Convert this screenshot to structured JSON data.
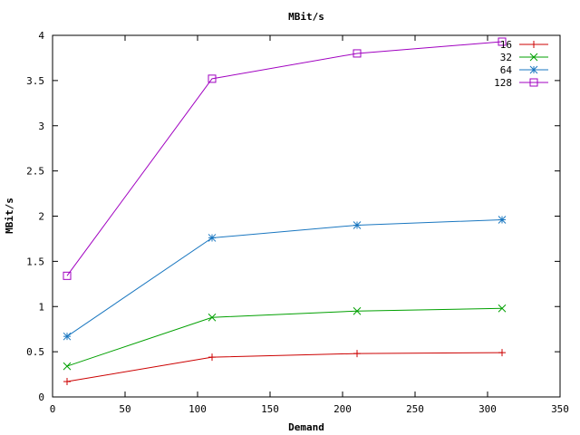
{
  "chart_data": {
    "type": "line",
    "title": "MBit/s",
    "xlabel": "Demand",
    "ylabel": "MBit/s",
    "xlim": [
      0,
      350
    ],
    "ylim": [
      0,
      4
    ],
    "x_ticks": [
      0,
      50,
      100,
      150,
      200,
      250,
      300,
      350
    ],
    "y_ticks": [
      0,
      0.5,
      1,
      1.5,
      2,
      2.5,
      3,
      3.5,
      4
    ],
    "x_tick_labels": [
      "0",
      "50",
      "100",
      "150",
      "200",
      "250",
      "300",
      "350"
    ],
    "y_tick_labels": [
      "0",
      "0.5",
      "1",
      "1.5",
      "2",
      "2.5",
      "3",
      "3.5",
      "4"
    ],
    "grid": false,
    "legend_position": "top-right",
    "x": [
      10,
      110,
      210,
      310
    ],
    "series": [
      {
        "name": "16",
        "color": "#cc0000",
        "marker": "plus",
        "values": [
          0.17,
          0.44,
          0.48,
          0.49
        ]
      },
      {
        "name": "32",
        "color": "#00a000",
        "marker": "cross",
        "values": [
          0.34,
          0.88,
          0.95,
          0.98
        ]
      },
      {
        "name": "64",
        "color": "#1a77c0",
        "marker": "star",
        "values": [
          0.67,
          1.76,
          1.9,
          1.96
        ]
      },
      {
        "name": "128",
        "color": "#a000c0",
        "marker": "square",
        "values": [
          1.34,
          3.52,
          3.8,
          3.93
        ]
      }
    ]
  }
}
